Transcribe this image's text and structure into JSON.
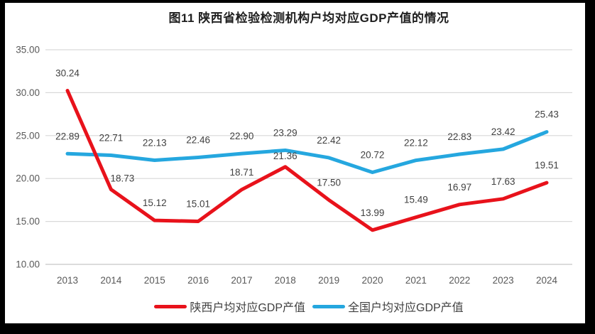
{
  "figure": {
    "title": "图11 陕西省检验检测机构户均对应GDP产值的情况",
    "frame_color": "#000000",
    "canvas_color": "#FFFFFF"
  },
  "legend": {
    "position": "bottom",
    "items": [
      {
        "label": "陕西户均对应GDP产值",
        "color": "#E8121B"
      },
      {
        "label": "全国户均对应GDP产值",
        "color": "#25A7DF"
      }
    ]
  },
  "chart_data": {
    "type": "line",
    "title": "图11 陕西省检验检测机构户均对应GDP产值的情况",
    "categories": [
      "2013",
      "2014",
      "2015",
      "2016",
      "2017",
      "2018",
      "2019",
      "2020",
      "2021",
      "2022",
      "2023",
      "2024"
    ],
    "series": [
      {
        "name": "陕西户均对应GDP产值",
        "color": "#E8121B",
        "values": [
          30.24,
          18.73,
          15.12,
          15.01,
          18.71,
          21.36,
          17.5,
          13.99,
          15.49,
          16.97,
          17.63,
          19.51
        ]
      },
      {
        "name": "全国户均对应GDP产值",
        "color": "#25A7DF",
        "values": [
          22.89,
          22.71,
          22.13,
          22.46,
          22.9,
          23.29,
          22.42,
          20.72,
          22.12,
          22.83,
          23.42,
          25.43
        ]
      }
    ],
    "xlabel": "",
    "ylabel": "",
    "ylim": [
      10,
      35
    ],
    "ytick_step": 5,
    "ytick_labels": [
      "35.00",
      "30.00",
      "25.00",
      "20.00",
      "15.00",
      "10.00"
    ],
    "grid": true,
    "data_labels": true,
    "legend_position": "bottom",
    "colors": {
      "gridline": "#D9D9D9",
      "axis_line": "#C6C6C6",
      "axis_text": "#595959",
      "data_label_text": "#404040",
      "title_text": "#1F1F1F",
      "legend_text": "#404040"
    }
  }
}
